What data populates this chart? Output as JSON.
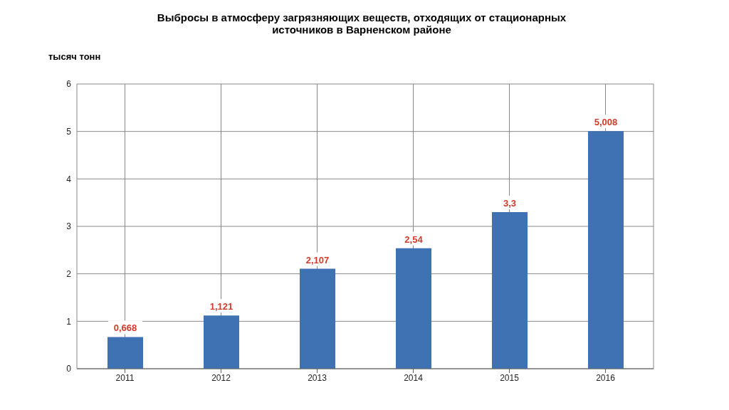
{
  "chart_data": {
    "type": "bar",
    "title": "Выбросы в атмосферу  загрязняющих веществ,  отходящих от стационарных источников в Варненском районе",
    "ylabel": "тысяч тонн",
    "categories": [
      "2011",
      "2012",
      "2013",
      "2014",
      "2015",
      "2016"
    ],
    "values": [
      0.668,
      1.121,
      2.107,
      2.54,
      3.3,
      5.008
    ],
    "value_labels": [
      "0,668",
      "1,121",
      "2,107",
      "2,54",
      "3,3",
      "5,008"
    ],
    "color": "#3e72b3",
    "ylim": [
      0,
      6
    ],
    "yticks": [
      0,
      1,
      2,
      3,
      4,
      5,
      6
    ],
    "grid": true
  }
}
